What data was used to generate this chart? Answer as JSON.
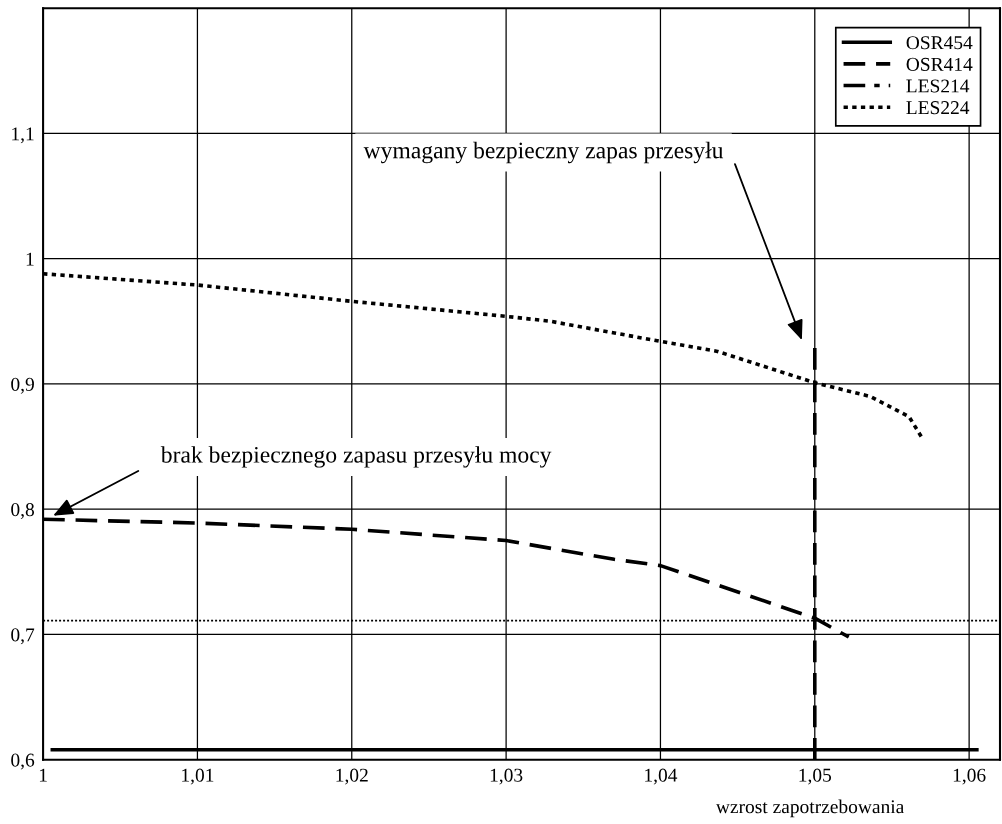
{
  "chart_data": {
    "type": "line",
    "xlabel": "wzrost zapotrzebowania",
    "xlim": [
      1,
      1.062
    ],
    "ylim": [
      0.6,
      1.2
    ],
    "xticks": [
      {
        "value": 1,
        "label": "1"
      },
      {
        "value": 1.01,
        "label": "1,01"
      },
      {
        "value": 1.02,
        "label": "1,02"
      },
      {
        "value": 1.03,
        "label": "1,03"
      },
      {
        "value": 1.04,
        "label": "1,04"
      },
      {
        "value": 1.05,
        "label": "1,05"
      },
      {
        "value": 1.06,
        "label": "1,06"
      }
    ],
    "yticks": [
      {
        "value": 0.6,
        "label": "0,6"
      },
      {
        "value": 0.7,
        "label": "0,7"
      },
      {
        "value": 0.8,
        "label": "0,8"
      },
      {
        "value": 0.9,
        "label": "0,9"
      },
      {
        "value": 1.0,
        "label": "1"
      },
      {
        "value": 1.1,
        "label": "1,1"
      },
      {
        "value": 1.2,
        "label": null
      }
    ],
    "grid": true,
    "legend": "top right",
    "marker": "none",
    "series": [
      {
        "name": "OSR454",
        "color": "#000000",
        "line_style": "solid",
        "x": [
          1.0006,
          1.0605
        ],
        "values": [
          0.608,
          0.608
        ]
      },
      {
        "name": "OSR414",
        "color": "#000000",
        "line_style": "dashed",
        "x": [
          1,
          1.01,
          1.02,
          1.03,
          1.037,
          1.04,
          1.05,
          1.0522
        ],
        "values": [
          0.792,
          0.789,
          0.784,
          0.775,
          0.76,
          0.755,
          0.713,
          0.698
        ]
      },
      {
        "name": "LES214",
        "color": "#000000",
        "line_style": "dashdot"
      },
      {
        "name": "LES224",
        "color": "#000000",
        "line_style": "dotted",
        "x": [
          1,
          1.01,
          1.02,
          1.03,
          1.0329,
          1.04,
          1.0437,
          1.05,
          1.0536,
          1.0561,
          1.0569
        ],
        "values": [
          0.988,
          0.979,
          0.966,
          0.954,
          0.95,
          0.934,
          0.926,
          0.901,
          0.89,
          0.874,
          0.858
        ]
      },
      {
        "color": "#000000",
        "line_style": "dashed",
        "x": [
          1.05,
          1.05
        ],
        "values": [
          0.6,
          0.933
        ]
      }
    ],
    "ref_lines": [
      {
        "axis": "y",
        "value": 0.711,
        "color": "#000000",
        "line_style": "dotted"
      }
    ],
    "annotations": [
      "wymagany bezpieczny zapas przesyłu",
      "brak bezpiecznego zapasu przesyłu mocy"
    ]
  }
}
